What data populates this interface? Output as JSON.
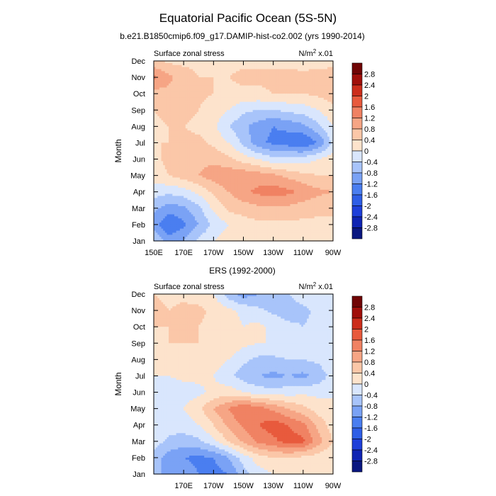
{
  "figure": {
    "title": "Equatorial Pacific Ocean (5S-5N)",
    "subtitle": "b.e21.B1850cmip6.f09_g17.DAMIP-hist-co2.002 (yrs 1990-2014)",
    "y_axis_title": "Month",
    "units_base": "N/m",
    "units_exp": "2",
    "units_scale": " x.01"
  },
  "colors": {
    "levels": [
      -2.8,
      -2.4,
      -2,
      -1.6,
      -1.2,
      -0.8,
      -0.4,
      0,
      0.4,
      0.8,
      1.2,
      1.6,
      2,
      2.4,
      2.8
    ],
    "palette": [
      "#0a1780",
      "#0f24b3",
      "#1e3fd9",
      "#2e5ee6",
      "#4a7ef0",
      "#7aa2f5",
      "#a8c4fa",
      "#d9e6fd",
      "#fde3cc",
      "#fbc7a8",
      "#f6a585",
      "#f08263",
      "#e85a3d",
      "#cc2d1b",
      "#a00f0a",
      "#700505"
    ]
  },
  "chart_data": [
    {
      "type": "heatmap",
      "title": "",
      "left_string": "Surface zonal stress",
      "xlabel": "",
      "ylabel": "Month",
      "x_tick_labels": [
        "150E",
        "170E",
        "170W",
        "150W",
        "130W",
        "110W",
        "90W"
      ],
      "y_tick_labels": [
        "Jan",
        "Feb",
        "Mar",
        "Apr",
        "May",
        "Jun",
        "Jul",
        "Aug",
        "Sep",
        "Oct",
        "Nov",
        "Dec"
      ],
      "xlim_degE": [
        150,
        270
      ],
      "contour_levels": [
        -2.8,
        -2.4,
        -2,
        -1.6,
        -1.2,
        -0.8,
        -0.4,
        0,
        0.4,
        0.8,
        1.2,
        1.6,
        2,
        2.4,
        2.8
      ],
      "colorbar_labels": [
        "2.8",
        "2.4",
        "2",
        "1.6",
        "1.2",
        "0.8",
        "0.4",
        "0",
        "-0.4",
        "-0.8",
        "-1.2",
        "-1.6",
        "-2",
        "-2.4",
        "-2.8"
      ],
      "lon_degE": [
        150,
        160,
        170,
        180,
        190,
        200,
        210,
        220,
        230,
        240,
        250,
        260,
        270
      ],
      "values": [
        [
          -0.4,
          -1.0,
          -0.8,
          -0.3,
          0.0,
          0.2,
          0.3,
          0.3,
          0.2,
          0.2,
          0.3,
          0.3,
          0.3
        ],
        [
          -1.0,
          -1.6,
          -1.3,
          -0.8,
          -0.3,
          0.0,
          0.2,
          0.3,
          0.3,
          0.3,
          0.3,
          0.3,
          0.3
        ],
        [
          -0.7,
          -1.0,
          -0.9,
          -0.5,
          0.1,
          0.5,
          0.6,
          0.7,
          0.7,
          0.7,
          0.6,
          0.5,
          0.5
        ],
        [
          -0.2,
          -0.3,
          -0.2,
          0.1,
          0.5,
          0.8,
          1.1,
          1.3,
          1.4,
          1.3,
          1.1,
          0.9,
          0.8
        ],
        [
          0.2,
          0.4,
          0.6,
          0.8,
          1.0,
          1.1,
          1.1,
          1.0,
          0.9,
          0.7,
          0.5,
          0.4,
          0.4
        ],
        [
          0.3,
          0.5,
          0.6,
          0.7,
          0.7,
          0.5,
          0.2,
          0.0,
          -0.3,
          -0.3,
          -0.2,
          0.0,
          0.2
        ],
        [
          0.4,
          0.4,
          0.5,
          0.5,
          0.3,
          0.0,
          -0.5,
          -1.1,
          -1.3,
          -1.4,
          -1.6,
          -1.2,
          -0.3
        ],
        [
          0.3,
          0.4,
          0.4,
          0.3,
          0.1,
          -0.4,
          -0.7,
          -1.0,
          -1.2,
          -1.1,
          -0.9,
          -0.5,
          0.0
        ],
        [
          0.4,
          0.5,
          0.5,
          0.4,
          0.2,
          0.0,
          -0.3,
          -0.4,
          -0.4,
          -0.3,
          -0.2,
          0.0,
          0.3
        ],
        [
          0.6,
          0.7,
          0.6,
          0.5,
          0.4,
          0.3,
          0.3,
          0.3,
          0.4,
          0.4,
          0.4,
          0.5,
          0.6
        ],
        [
          1.3,
          0.9,
          0.6,
          0.4,
          0.4,
          0.4,
          0.5,
          0.5,
          0.5,
          0.6,
          0.6,
          0.7,
          0.7
        ],
        [
          0.5,
          0.3,
          0.3,
          0.3,
          0.3,
          0.3,
          0.3,
          0.3,
          0.3,
          0.2,
          0.1,
          0.1,
          0.2
        ]
      ]
    },
    {
      "type": "heatmap",
      "title": "ERS (1992-2000)",
      "left_string": "Surface zonal stress",
      "xlabel": "",
      "ylabel": "Month",
      "x_tick_labels": [
        "170E",
        "170W",
        "150W",
        "130W",
        "110W",
        "90W"
      ],
      "y_tick_labels": [
        "Jan",
        "Feb",
        "Mar",
        "Apr",
        "May",
        "Jun",
        "Jul",
        "Aug",
        "Sep",
        "Oct",
        "Nov",
        "Dec"
      ],
      "xlim_degE": [
        150,
        270
      ],
      "contour_levels": [
        -2.8,
        -2.4,
        -2,
        -1.6,
        -1.2,
        -0.8,
        -0.4,
        0,
        0.4,
        0.8,
        1.2,
        1.6,
        2,
        2.4,
        2.8
      ],
      "colorbar_labels": [
        "2.8",
        "2.4",
        "2",
        "1.6",
        "1.2",
        "0.8",
        "0.4",
        "0",
        "-0.4",
        "-0.8",
        "-1.2",
        "-1.6",
        "-2",
        "-2.4",
        "-2.8"
      ],
      "lon_degE": [
        150,
        160,
        170,
        180,
        190,
        200,
        210,
        220,
        230,
        240,
        250,
        260,
        270
      ],
      "values": [
        [
          -0.8,
          -0.8,
          -1.0,
          -1.2,
          -1.4,
          -1.2,
          -0.6,
          -0.2,
          0.0,
          0.0,
          0.0,
          0.0,
          0.0
        ],
        [
          -0.6,
          -1.0,
          -1.2,
          -1.3,
          -1.2,
          -0.8,
          -0.2,
          0.2,
          0.4,
          0.4,
          0.3,
          0.2,
          0.0
        ],
        [
          -0.2,
          -0.5,
          -0.6,
          -0.5,
          -0.1,
          0.4,
          0.9,
          1.3,
          1.5,
          1.8,
          1.7,
          1.0,
          0.4
        ],
        [
          -0.1,
          -0.2,
          -0.2,
          0.0,
          0.4,
          0.9,
          1.3,
          1.6,
          1.8,
          1.6,
          1.3,
          0.7,
          0.2
        ],
        [
          -0.2,
          -0.1,
          0.0,
          0.3,
          0.8,
          1.2,
          1.6,
          1.4,
          1.1,
          0.8,
          0.5,
          0.2,
          0.0
        ],
        [
          -0.2,
          -0.3,
          -0.2,
          -0.1,
          0.1,
          0.2,
          0.0,
          -0.2,
          -0.2,
          -0.2,
          -0.1,
          -0.1,
          0.0
        ],
        [
          0.0,
          0.0,
          0.1,
          0.1,
          0.0,
          -0.3,
          -0.6,
          -0.8,
          -0.9,
          -0.8,
          -0.9,
          -0.7,
          -0.2
        ],
        [
          0.1,
          0.2,
          0.3,
          0.3,
          0.2,
          0.0,
          -0.3,
          -0.5,
          -0.5,
          -0.4,
          -0.4,
          -0.3,
          0.0
        ],
        [
          0.3,
          0.4,
          0.4,
          0.4,
          0.3,
          0.3,
          0.1,
          0.0,
          0.0,
          -0.1,
          -0.3,
          -0.3,
          0.0
        ],
        [
          0.4,
          0.4,
          0.4,
          0.4,
          0.3,
          0.2,
          0.0,
          0.1,
          -0.1,
          -0.3,
          -0.4,
          -0.3,
          0.0
        ],
        [
          0.5,
          0.4,
          0.5,
          0.5,
          0.3,
          0.1,
          -0.1,
          -0.3,
          -0.5,
          -0.6,
          -0.5,
          -0.3,
          0.0
        ],
        [
          0.4,
          0.3,
          0.3,
          0.2,
          0.0,
          -0.6,
          -1.0,
          -0.8,
          -0.6,
          -0.4,
          -0.2,
          0.0,
          0.0
        ]
      ]
    }
  ]
}
